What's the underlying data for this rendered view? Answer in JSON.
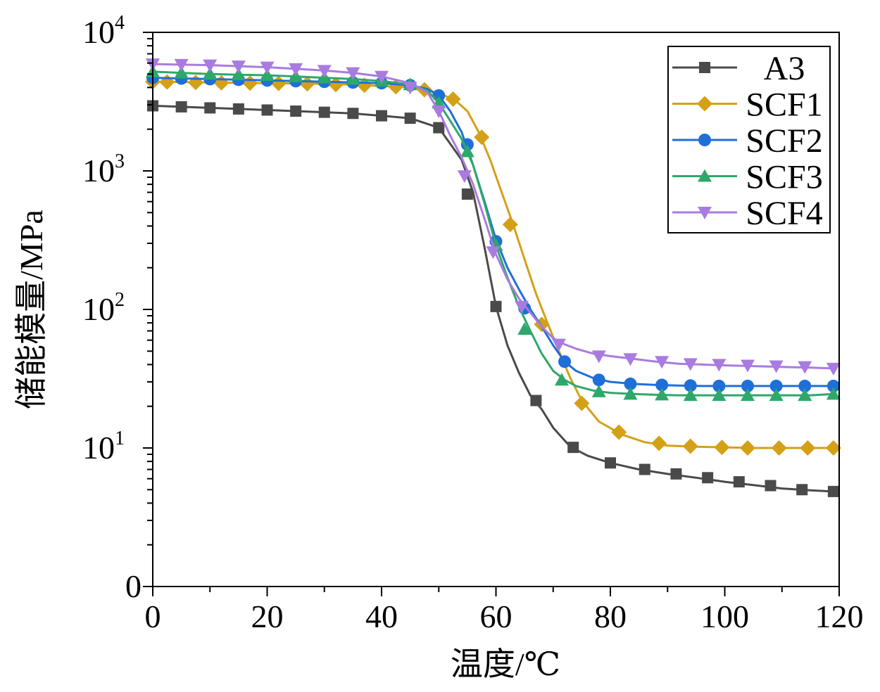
{
  "chart_data": {
    "type": "line",
    "xlabel": "温度/℃",
    "ylabel": "储能模量/MPa",
    "xlim": [
      0,
      120
    ],
    "ylim": [
      1,
      10000
    ],
    "yscale": "log",
    "grid": false,
    "legend_position": "top-right",
    "x_ticks": [
      0,
      20,
      40,
      60,
      80,
      100,
      120
    ],
    "x_tick_labels": [
      "0",
      "20",
      "40",
      "60",
      "80",
      "100",
      "120"
    ],
    "y_ticks": [
      {
        "value": 1,
        "base": "0",
        "exp": ""
      },
      {
        "value": 10,
        "base": "10",
        "exp": "1"
      },
      {
        "value": 100,
        "base": "10",
        "exp": "2"
      },
      {
        "value": 1000,
        "base": "10",
        "exp": "3"
      },
      {
        "value": 10000,
        "base": "10",
        "exp": "4"
      }
    ],
    "series": [
      {
        "name": "A3",
        "color": "#4a4a4a",
        "marker": "square",
        "x": [
          0,
          5,
          10,
          15,
          20,
          25,
          30,
          35,
          40,
          45,
          50,
          54,
          56,
          58,
          60,
          62,
          64,
          66,
          68,
          70,
          73,
          76,
          80,
          85,
          90,
          95,
          100,
          105,
          110,
          115,
          119
        ],
        "y": [
          2950,
          2900,
          2850,
          2800,
          2750,
          2700,
          2650,
          2600,
          2500,
          2400,
          2050,
          1200,
          700,
          280,
          105,
          55,
          35,
          24,
          19,
          14,
          10.2,
          8.8,
          7.8,
          7.0,
          6.5,
          6.1,
          5.7,
          5.4,
          5.1,
          4.95,
          4.85
        ],
        "marker_x": [
          0,
          5,
          10,
          15,
          20,
          25,
          30,
          35,
          40,
          45,
          50,
          55,
          60,
          67,
          73.5,
          80,
          86,
          91.5,
          97,
          102.5,
          108,
          113.5,
          119
        ],
        "marker_y": [
          2950,
          2900,
          2850,
          2800,
          2750,
          2700,
          2650,
          2600,
          2500,
          2400,
          2050,
          680,
          105,
          22,
          10.1,
          7.8,
          7.0,
          6.5,
          6.1,
          5.7,
          5.35,
          5.0,
          4.85
        ]
      },
      {
        "name": "SCF1",
        "color": "#d4a017",
        "marker": "diamond",
        "x": [
          0,
          5,
          10,
          15,
          20,
          25,
          30,
          35,
          40,
          45,
          48,
          51,
          53,
          55,
          57,
          59,
          61,
          63,
          65,
          67,
          69,
          71,
          73,
          75,
          78,
          82,
          86,
          90,
          95,
          100,
          105,
          110,
          115,
          119
        ],
        "y": [
          4400,
          4380,
          4350,
          4320,
          4300,
          4280,
          4250,
          4200,
          4100,
          4000,
          3850,
          3500,
          3200,
          2700,
          1900,
          1200,
          700,
          410,
          230,
          130,
          80,
          50,
          32,
          22,
          15.5,
          12.5,
          11,
          10.4,
          10.2,
          10.1,
          10.0,
          10.0,
          10.0,
          10.0
        ],
        "marker_x": [
          0,
          2.5,
          7.5,
          12,
          17,
          22,
          27,
          32,
          37,
          42.5,
          47.5,
          52.5,
          57.5,
          62.5,
          68,
          75,
          81.5,
          88.5,
          94,
          99.5,
          104,
          109.5,
          114.5,
          119
        ],
        "marker_y": [
          4400,
          4380,
          4350,
          4320,
          4300,
          4280,
          4250,
          4200,
          4150,
          4050,
          3850,
          3300,
          1750,
          410,
          78,
          21,
          13,
          10.8,
          10.3,
          10.1,
          10.0,
          10.0,
          10.0,
          10.0
        ]
      },
      {
        "name": "SCF2",
        "color": "#1f6fd8",
        "marker": "circle",
        "x": [
          0,
          5,
          10,
          15,
          20,
          25,
          30,
          35,
          40,
          45,
          48,
          50,
          52,
          54,
          56,
          58,
          60,
          62,
          64,
          66,
          68,
          70,
          72,
          74,
          77,
          80,
          84,
          88,
          92,
          96,
          100,
          105,
          110,
          115,
          119
        ],
        "y": [
          4700,
          4650,
          4600,
          4550,
          4500,
          4450,
          4400,
          4350,
          4300,
          4150,
          3900,
          3500,
          2700,
          1900,
          1100,
          600,
          320,
          200,
          140,
          100,
          75,
          55,
          42,
          36,
          32,
          30,
          29,
          28.5,
          28.2,
          28,
          28,
          28,
          28,
          28,
          28
        ],
        "marker_x": [
          0,
          5,
          10,
          15,
          20,
          25,
          30,
          35,
          40,
          45,
          50,
          55,
          60,
          65,
          72,
          78,
          83.5,
          89,
          94,
          99,
          104,
          109,
          114,
          119
        ],
        "marker_y": [
          4700,
          4650,
          4600,
          4550,
          4500,
          4450,
          4400,
          4350,
          4300,
          4150,
          3500,
          1550,
          310,
          102,
          42,
          31,
          29,
          28.5,
          28.2,
          28,
          28,
          28,
          28,
          28
        ]
      },
      {
        "name": "SCF3",
        "color": "#2ea86a",
        "marker": "triangle-up",
        "x": [
          0,
          5,
          10,
          15,
          20,
          25,
          30,
          35,
          40,
          45,
          48,
          50,
          52,
          54,
          56,
          58,
          60,
          62,
          64,
          66,
          68,
          70,
          72,
          74,
          77,
          80,
          84,
          88,
          92,
          96,
          100,
          105,
          110,
          115,
          119
        ],
        "y": [
          5200,
          5100,
          5000,
          4950,
          4900,
          4800,
          4700,
          4600,
          4450,
          4200,
          3800,
          3100,
          2300,
          1700,
          1100,
          580,
          290,
          170,
          105,
          70,
          48,
          36,
          31,
          28,
          26,
          25,
          24.5,
          24.2,
          24,
          24,
          24,
          24,
          24,
          24,
          24.5
        ],
        "marker_x": [
          0,
          5,
          10,
          15,
          20,
          25,
          30,
          35,
          40,
          45,
          50,
          55,
          60,
          65,
          71.5,
          78,
          83.5,
          89,
          94,
          99,
          104,
          109,
          114,
          119
        ],
        "marker_y": [
          5200,
          5100,
          5000,
          4950,
          4900,
          4800,
          4700,
          4600,
          4450,
          4200,
          3100,
          1380,
          290,
          72,
          31,
          25.5,
          24.5,
          24.2,
          24,
          24,
          24,
          24,
          24,
          24.5
        ]
      },
      {
        "name": "SCF4",
        "color": "#a97be0",
        "marker": "triangle-down",
        "x": [
          0,
          5,
          10,
          15,
          20,
          25,
          30,
          35,
          40,
          45,
          48,
          50,
          52,
          54,
          56,
          58,
          60,
          62,
          64,
          66,
          68,
          70,
          72,
          74,
          77,
          80,
          84,
          88,
          92,
          96,
          100,
          105,
          110,
          115,
          119
        ],
        "y": [
          5900,
          5850,
          5800,
          5700,
          5600,
          5450,
          5300,
          5100,
          4800,
          4300,
          3700,
          2700,
          1800,
          1250,
          800,
          450,
          250,
          165,
          120,
          95,
          75,
          62,
          56,
          52,
          48,
          46,
          44,
          42,
          40.5,
          40,
          39.5,
          39,
          38.5,
          38,
          37.5
        ],
        "marker_x": [
          0,
          5,
          10,
          15,
          20,
          25,
          30,
          35,
          40,
          45,
          50,
          54.5,
          59.5,
          64.5,
          71,
          78,
          83.5,
          89,
          94,
          99,
          104,
          109,
          114,
          119
        ],
        "marker_y": [
          5900,
          5850,
          5800,
          5700,
          5600,
          5450,
          5300,
          5100,
          4800,
          4000,
          2700,
          920,
          260,
          105,
          56,
          46,
          44,
          42,
          40.5,
          40,
          39.5,
          39,
          38.5,
          37.5
        ]
      }
    ]
  }
}
